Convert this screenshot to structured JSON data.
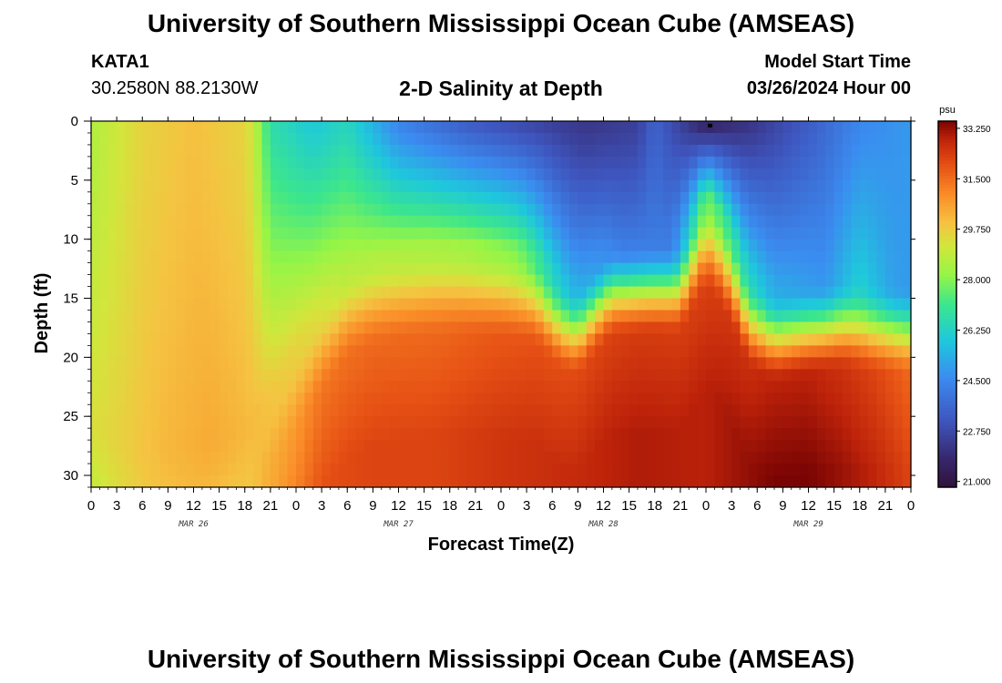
{
  "page": {
    "title_top": "University of Southern Mississippi Ocean Cube (AMSEAS)",
    "title_bottom": "University of Southern Mississippi Ocean Cube (AMSEAS)",
    "station_id": "KATA1",
    "coordinates": "30.2580N  88.2130W",
    "plot_title": "2-D Salinity at Depth",
    "model_start_label": "Model Start Time",
    "model_start_value": "03/26/2024 Hour 00"
  },
  "chart_data": {
    "type": "heatmap",
    "title": "2-D Salinity at Depth",
    "xlabel": "Forecast Time(Z)",
    "ylabel": "Depth (ft)",
    "x_range_hours": [
      0,
      96
    ],
    "x_tick_step_hours": 3,
    "x_tick_labels": [
      "0",
      "3",
      "6",
      "9",
      "12",
      "15",
      "18",
      "21",
      "0",
      "3",
      "6",
      "9",
      "12",
      "15",
      "18",
      "21",
      "0",
      "3",
      "6",
      "9",
      "12",
      "15",
      "18",
      "21",
      "0",
      "3",
      "6",
      "9",
      "12",
      "15",
      "18",
      "21",
      "0"
    ],
    "day_labels": [
      {
        "label": "MAR 26",
        "hour": 12
      },
      {
        "label": "MAR 27",
        "hour": 36
      },
      {
        "label": "MAR 28",
        "hour": 60
      },
      {
        "label": "MAR 29",
        "hour": 84
      }
    ],
    "y_range_ft": [
      0,
      31
    ],
    "y_ticks": [
      0,
      5,
      10,
      15,
      20,
      25,
      30
    ],
    "y_minor_step": 1,
    "colorbar": {
      "unit": "psu",
      "range": [
        20.8,
        33.5
      ],
      "ticks": [
        "33.250",
        "31.500",
        "29.750",
        "28.000",
        "26.250",
        "24.500",
        "22.750",
        "21.000"
      ],
      "tick_values": [
        33.25,
        31.5,
        29.75,
        28.0,
        26.25,
        24.5,
        22.75,
        21.0
      ]
    },
    "surface_marker": {
      "hour": 72,
      "depth_ft": 0.3
    },
    "interface_depth_ft_by_hour": [
      [
        0,
        30.5
      ],
      [
        6,
        32
      ],
      [
        12,
        32
      ],
      [
        18,
        31
      ],
      [
        21,
        28
      ],
      [
        24,
        24
      ],
      [
        27,
        20.5
      ],
      [
        30,
        17.5
      ],
      [
        33,
        16.5
      ],
      [
        36,
        16
      ],
      [
        40,
        15.6
      ],
      [
        44,
        15.6
      ],
      [
        48,
        15.8
      ],
      [
        52,
        16.3
      ],
      [
        55,
        18.4
      ],
      [
        57,
        18.9
      ],
      [
        59,
        17
      ],
      [
        61,
        15.5
      ],
      [
        66,
        15.2
      ],
      [
        69,
        15.2
      ],
      [
        71,
        12.5
      ],
      [
        72,
        11.5
      ],
      [
        73,
        12
      ],
      [
        75,
        14.5
      ],
      [
        77,
        18.2
      ],
      [
        80,
        19.4
      ],
      [
        84,
        18.8
      ],
      [
        88,
        18.3
      ],
      [
        92,
        18.7
      ],
      [
        96,
        18.9
      ]
    ],
    "surface_salinity_by_hour": [
      [
        0,
        28.6
      ],
      [
        6,
        29.6
      ],
      [
        12,
        30.0
      ],
      [
        18,
        29.6
      ],
      [
        19,
        29.0
      ],
      [
        21,
        26.7
      ],
      [
        26,
        25.9
      ],
      [
        30,
        26.4
      ],
      [
        36,
        24.4
      ],
      [
        44,
        23.3
      ],
      [
        50,
        22.8
      ],
      [
        58,
        22.2
      ],
      [
        64,
        22.5
      ],
      [
        66,
        23.5
      ],
      [
        70,
        22.2
      ],
      [
        72,
        21.5
      ],
      [
        78,
        22.3
      ],
      [
        84,
        23.3
      ],
      [
        90,
        24.5
      ],
      [
        96,
        24.9
      ]
    ],
    "bottom_salinity_by_hour": [
      [
        0,
        29.4
      ],
      [
        6,
        30.3
      ],
      [
        12,
        30.6
      ],
      [
        18,
        30.3
      ],
      [
        21,
        31.0
      ],
      [
        24,
        31.4
      ],
      [
        27,
        32.0
      ],
      [
        33,
        32.2
      ],
      [
        40,
        32.2
      ],
      [
        48,
        32.5
      ],
      [
        56,
        32.7
      ],
      [
        64,
        33.0
      ],
      [
        72,
        32.9
      ],
      [
        76,
        33.2
      ],
      [
        80,
        33.5
      ],
      [
        84,
        33.5
      ],
      [
        88,
        33.2
      ],
      [
        92,
        32.8
      ],
      [
        96,
        32.2
      ]
    ],
    "mid_salinity_by_hour": [
      [
        0,
        29.3
      ],
      [
        8,
        30.1
      ],
      [
        14,
        30.4
      ],
      [
        20,
        30.0
      ],
      [
        26,
        29.4
      ],
      [
        30,
        28.7
      ],
      [
        36,
        28.6
      ],
      [
        44,
        28.4
      ],
      [
        50,
        28.0
      ],
      [
        56,
        25.5
      ],
      [
        62,
        24.2
      ],
      [
        68,
        24.2
      ],
      [
        72,
        27.8
      ],
      [
        75,
        27.0
      ],
      [
        80,
        25.3
      ],
      [
        86,
        24.8
      ],
      [
        90,
        26.1
      ],
      [
        94,
        25.0
      ],
      [
        96,
        24.9
      ]
    ]
  },
  "colors": {
    "background": "#ffffff",
    "axis": "#000000",
    "marker": "#000000"
  }
}
